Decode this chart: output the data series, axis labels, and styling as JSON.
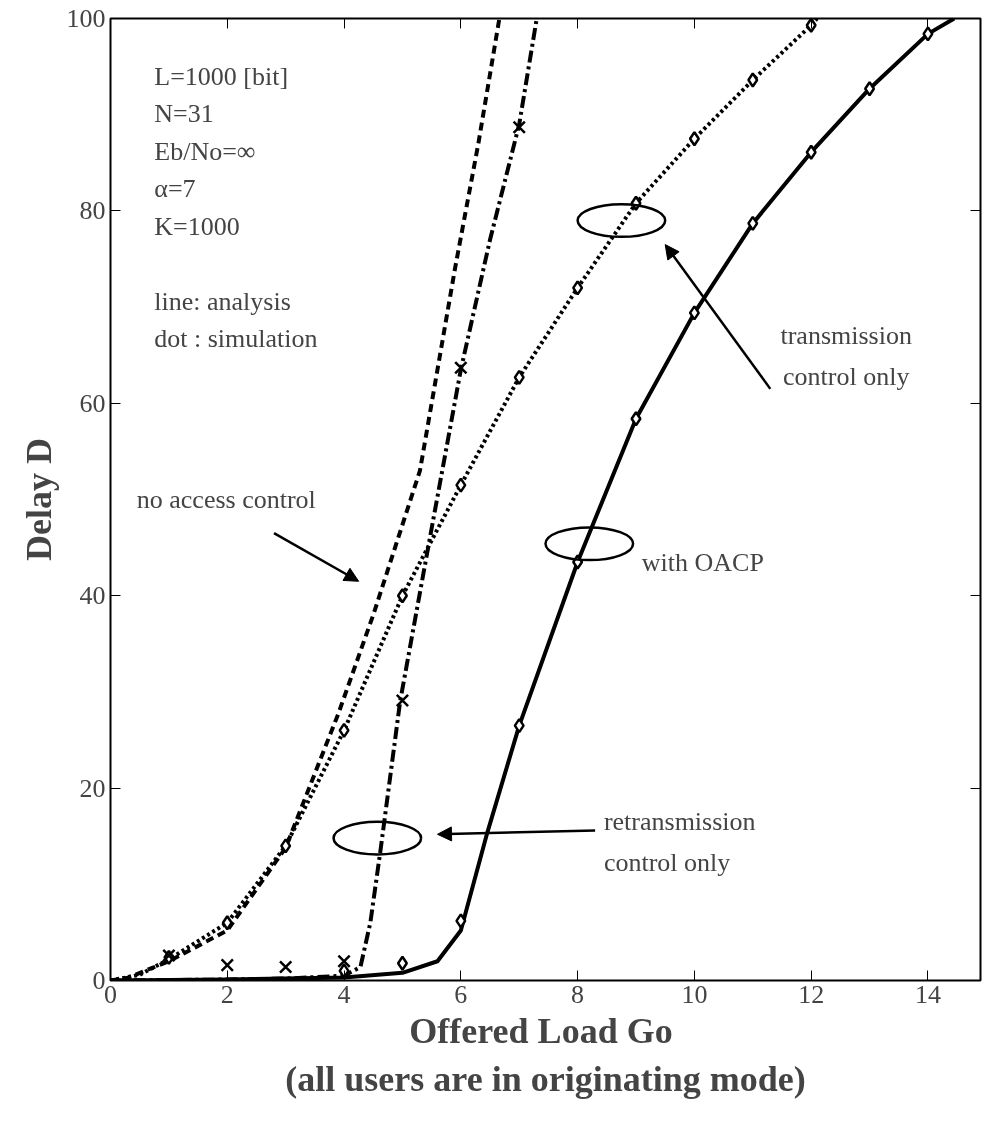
{
  "chart_data": {
    "type": "line",
    "xlabel": "Offered Load  Go\n(all users are in originating mode)",
    "ylabel": "Delay D",
    "xlim": [
      0,
      14.9
    ],
    "ylim": [
      0,
      100
    ],
    "xticks": [
      0,
      2,
      4,
      6,
      8,
      10,
      12,
      14
    ],
    "yticks": [
      0,
      20,
      40,
      60,
      80,
      100
    ],
    "grid": false,
    "series": [
      {
        "line_style": "dashed",
        "marker": "none",
        "color": "#000000",
        "x": [
          0,
          0.3,
          1,
          2,
          3,
          3.9,
          4.5,
          5.3,
          5.9,
          6.3,
          6.66
        ],
        "values": [
          0,
          0.3,
          2,
          5.2,
          13.8,
          27.7,
          38,
          53,
          74,
          87,
          100
        ]
      },
      {
        "line_style": "dashdot",
        "marker": "none",
        "color": "#000000",
        "x": [
          0,
          2,
          3,
          4,
          4.28,
          4.45,
          4.63,
          4.96,
          5.5,
          6,
          6.5,
          7,
          7.3
        ],
        "values": [
          0,
          0.1,
          0.2,
          0.5,
          1.4,
          6,
          13.8,
          29,
          47,
          63.5,
          77,
          89,
          100
        ]
      },
      {
        "line_style": "dotted",
        "marker": "none",
        "color": "#000000",
        "x": [
          0,
          0.5,
          1,
          2,
          3,
          4,
          5,
          6,
          7,
          8,
          9,
          10,
          11,
          12,
          12.1
        ],
        "values": [
          0,
          0.6,
          2.2,
          6,
          14,
          26,
          40,
          51.5,
          62.7,
          72,
          80.8,
          87.5,
          93.6,
          99.3,
          100
        ]
      },
      {
        "line_style": "solid",
        "marker": "none",
        "color": "#000000",
        "x": [
          0,
          2,
          4,
          5,
          5.6,
          6,
          6.45,
          7,
          8,
          9,
          10,
          11,
          12,
          13,
          14,
          14.45
        ],
        "values": [
          0,
          0.1,
          0.3,
          0.8,
          2,
          5.2,
          15.3,
          26.5,
          43.5,
          58.4,
          69.4,
          78.7,
          86.1,
          92.7,
          98.4,
          100
        ]
      },
      {
        "type": "scatter",
        "marker": "diamond",
        "color": "#000000",
        "x": [
          1,
          2,
          3,
          4,
          5,
          6,
          7,
          8,
          9,
          10,
          11,
          12
        ],
        "values": [
          2.4,
          6,
          14,
          26,
          40,
          51.5,
          62.7,
          72,
          80.8,
          87.5,
          93.6,
          99.3
        ]
      },
      {
        "type": "scatter",
        "marker": "diamond",
        "color": "#000000",
        "x": [
          4,
          5,
          6,
          7,
          8,
          9,
          10,
          11,
          12,
          13,
          14
        ],
        "values": [
          1,
          1.8,
          6.2,
          26.5,
          43.5,
          58.4,
          69.4,
          78.7,
          86.1,
          92.7,
          98.4
        ]
      },
      {
        "type": "scatter",
        "marker": "cross",
        "color": "#000000",
        "x": [
          1,
          2,
          3,
          4,
          5,
          6,
          7
        ],
        "values": [
          2.6,
          1.6,
          1.4,
          2,
          29.1,
          63.7,
          88.7
        ]
      }
    ],
    "annotations": [
      "L=1000 [bit]\nN=31\nEb/No=∞\nα=7\nK=1000\n\nline: analysis\ndot : simulation",
      "no access control",
      "transmission\ncontrol only",
      "with OACP",
      "retransmission\ncontrol only"
    ]
  }
}
